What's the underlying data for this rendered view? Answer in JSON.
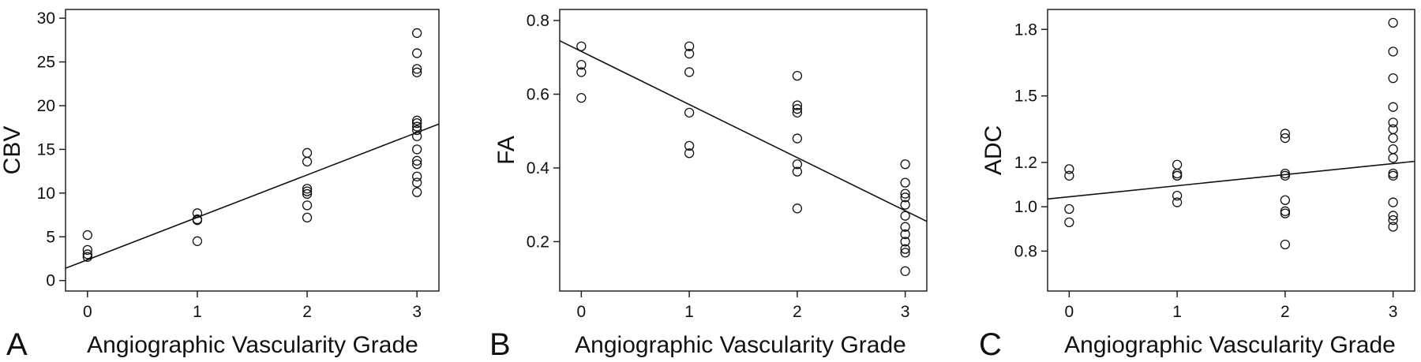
{
  "chart_data": [
    {
      "type": "scatter",
      "panel_label": "A",
      "xlabel": "Angiographic Vascularity Grade",
      "ylabel": "CBV",
      "xlim": [
        -0.2,
        3.2
      ],
      "ylim": [
        -1.2,
        31
      ],
      "xticks": [
        0,
        1,
        2,
        3
      ],
      "yticks": [
        0,
        5,
        10,
        15,
        20,
        25,
        30
      ],
      "yticklabels": [
        "0",
        "5",
        "10",
        "15",
        "20",
        "25",
        "30"
      ],
      "points": [
        [
          0,
          5.2
        ],
        [
          0,
          3.5
        ],
        [
          0,
          3.0
        ],
        [
          0,
          2.7
        ],
        [
          1,
          7.7
        ],
        [
          1,
          7.0
        ],
        [
          1,
          6.9
        ],
        [
          1,
          4.5
        ],
        [
          2,
          14.6
        ],
        [
          2,
          13.6
        ],
        [
          2,
          10.5
        ],
        [
          2,
          10.2
        ],
        [
          2,
          9.9
        ],
        [
          2,
          8.6
        ],
        [
          2,
          7.2
        ],
        [
          3,
          28.3
        ],
        [
          3,
          26.0
        ],
        [
          3,
          24.2
        ],
        [
          3,
          23.8
        ],
        [
          3,
          18.3
        ],
        [
          3,
          18.0
        ],
        [
          3,
          17.6
        ],
        [
          3,
          17.2
        ],
        [
          3,
          16.5
        ],
        [
          3,
          15.0
        ],
        [
          3,
          13.7
        ],
        [
          3,
          13.3
        ],
        [
          3,
          11.9
        ],
        [
          3,
          11.2
        ],
        [
          3,
          10.1
        ]
      ],
      "fit_line": {
        "x": [
          -0.2,
          3.2
        ],
        "y": [
          1.4,
          17.9
        ]
      },
      "grid": false
    },
    {
      "type": "scatter",
      "panel_label": "B",
      "xlabel": "Angiographic Vascularity Grade",
      "ylabel": "FA",
      "xlim": [
        -0.2,
        3.2
      ],
      "ylim": [
        0.066,
        0.83
      ],
      "xticks": [
        0,
        1,
        2,
        3
      ],
      "yticks": [
        0.2,
        0.4,
        0.6,
        0.8
      ],
      "yticklabels": [
        "0.2",
        "0.4",
        "0.6",
        "0.8"
      ],
      "points": [
        [
          0,
          0.73
        ],
        [
          0,
          0.68
        ],
        [
          0,
          0.66
        ],
        [
          0,
          0.59
        ],
        [
          1,
          0.73
        ],
        [
          1,
          0.71
        ],
        [
          1,
          0.66
        ],
        [
          1,
          0.55
        ],
        [
          1,
          0.46
        ],
        [
          1,
          0.44
        ],
        [
          2,
          0.65
        ],
        [
          2,
          0.57
        ],
        [
          2,
          0.56
        ],
        [
          2,
          0.55
        ],
        [
          2,
          0.48
        ],
        [
          2,
          0.41
        ],
        [
          2,
          0.39
        ],
        [
          2,
          0.29
        ],
        [
          3,
          0.41
        ],
        [
          3,
          0.36
        ],
        [
          3,
          0.33
        ],
        [
          3,
          0.32
        ],
        [
          3,
          0.3
        ],
        [
          3,
          0.27
        ],
        [
          3,
          0.24
        ],
        [
          3,
          0.22
        ],
        [
          3,
          0.2
        ],
        [
          3,
          0.18
        ],
        [
          3,
          0.17
        ],
        [
          3,
          0.12
        ]
      ],
      "fit_line": {
        "x": [
          -0.2,
          3.2
        ],
        "y": [
          0.745,
          0.255
        ]
      },
      "grid": false
    },
    {
      "type": "scatter",
      "panel_label": "C",
      "xlabel": "Angiographic Vascularity Grade",
      "ylabel": "ADC",
      "xlim": [
        -0.2,
        3.2
      ],
      "ylim": [
        0.62,
        1.89
      ],
      "xticks": [
        0,
        1,
        2,
        3
      ],
      "yticks": [
        0.8,
        1.0,
        1.2,
        1.5,
        1.8
      ],
      "yticklabels": [
        "0.8",
        "1.0",
        "1.2",
        "1.5",
        "1.8"
      ],
      "points": [
        [
          0,
          1.17
        ],
        [
          0,
          1.14
        ],
        [
          0,
          0.99
        ],
        [
          0,
          0.93
        ],
        [
          1,
          1.19
        ],
        [
          1,
          1.15
        ],
        [
          1,
          1.14
        ],
        [
          1,
          1.14
        ],
        [
          1,
          1.05
        ],
        [
          1,
          1.02
        ],
        [
          2,
          1.33
        ],
        [
          2,
          1.31
        ],
        [
          2,
          1.15
        ],
        [
          2,
          1.14
        ],
        [
          2,
          1.03
        ],
        [
          2,
          0.98
        ],
        [
          2,
          0.97
        ],
        [
          2,
          0.83
        ],
        [
          3,
          1.83
        ],
        [
          3,
          1.7
        ],
        [
          3,
          1.58
        ],
        [
          3,
          1.45
        ],
        [
          3,
          1.38
        ],
        [
          3,
          1.35
        ],
        [
          3,
          1.31
        ],
        [
          3,
          1.26
        ],
        [
          3,
          1.22
        ],
        [
          3,
          1.15
        ],
        [
          3,
          1.14
        ],
        [
          3,
          1.02
        ],
        [
          3,
          0.96
        ],
        [
          3,
          0.94
        ],
        [
          3,
          0.91
        ]
      ],
      "fit_line": {
        "x": [
          -0.2,
          3.2
        ],
        "y": [
          1.035,
          1.205
        ]
      },
      "grid": false
    }
  ]
}
